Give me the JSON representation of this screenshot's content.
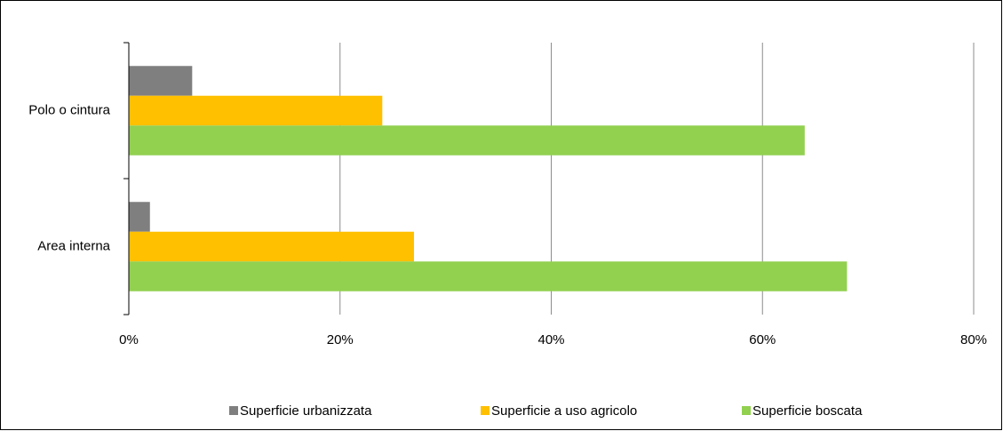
{
  "chart_data": {
    "type": "hbar",
    "categories": [
      "Polo o cintura",
      "Area interna"
    ],
    "series": [
      {
        "name": "Superficie urbanizzata",
        "color": "#7f7f7f",
        "values": [
          6,
          2
        ]
      },
      {
        "name": "Superficie a uso agricolo",
        "color": "#ffc000",
        "values": [
          24,
          27
        ]
      },
      {
        "name": "Superficie boscata",
        "color": "#92d050",
        "values": [
          64,
          68
        ]
      }
    ],
    "xlim": [
      0,
      80
    ],
    "xticks": [
      {
        "value": 0,
        "label": "0%"
      },
      {
        "value": 20,
        "label": "20%"
      },
      {
        "value": 40,
        "label": "40%"
      },
      {
        "value": 60,
        "label": "60%"
      },
      {
        "value": 80,
        "label": "80%"
      }
    ],
    "grid": true,
    "legend": "bottom"
  }
}
